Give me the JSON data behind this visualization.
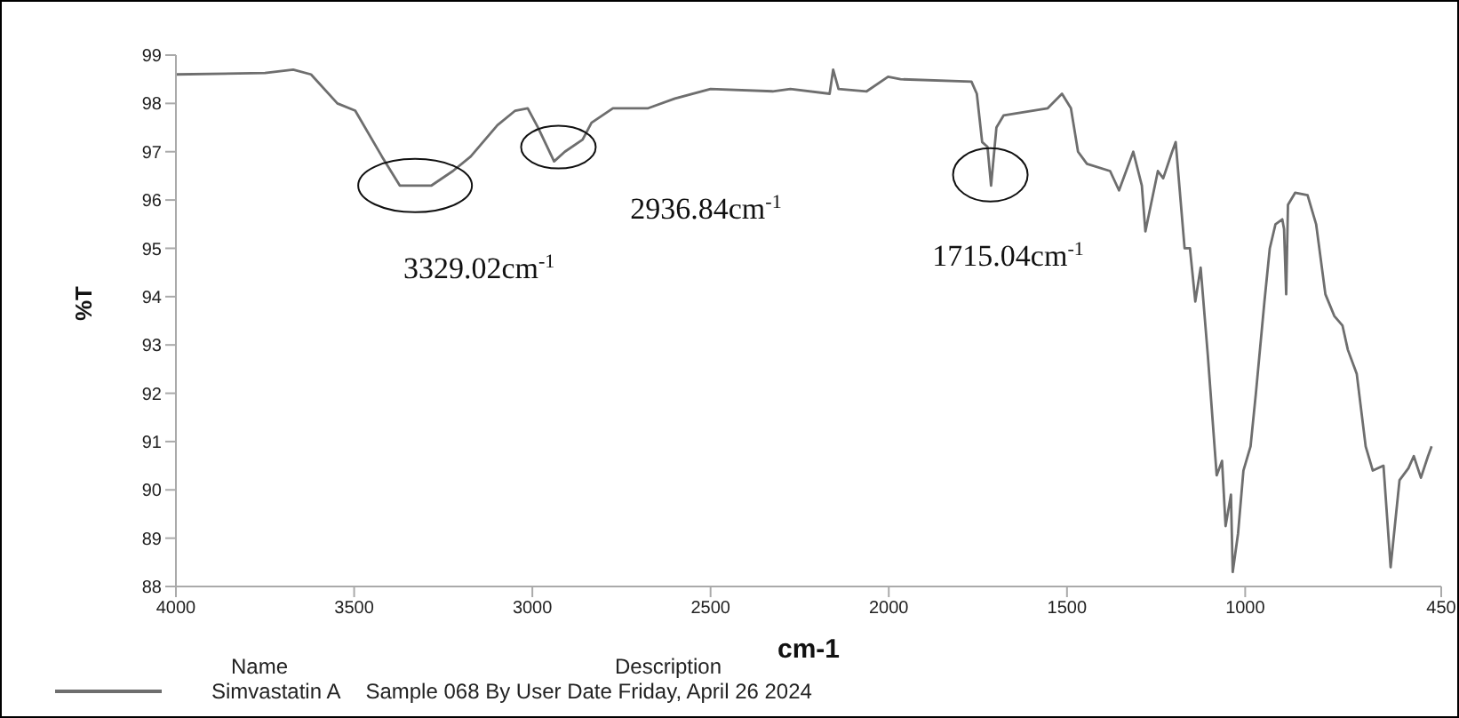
{
  "chart_data": {
    "type": "line",
    "xlabel": "cm-1",
    "ylabel": "%T",
    "xlim": [
      4000,
      450
    ],
    "xticks": [
      4000,
      3500,
      3000,
      2500,
      2000,
      1500,
      1000,
      450
    ],
    "ylim": [
      88,
      99
    ],
    "yticks": [
      88,
      89,
      90,
      91,
      92,
      93,
      94,
      95,
      96,
      97,
      98,
      99
    ],
    "legend": "bottom",
    "legend_title": "Name",
    "marker": "none",
    "line_style": "solid",
    "x": [
      4000,
      3750,
      3671,
      3621,
      3547,
      3497,
      3422,
      3372,
      3332,
      3283,
      3223,
      3173,
      3098,
      3048,
      3013,
      2984,
      2939,
      2909,
      2859,
      2834,
      2774,
      2675,
      2600,
      2500,
      2326,
      2276,
      2166,
      2156,
      2141,
      2062,
      2002,
      1967,
      1768,
      1753,
      1738,
      1723,
      1713,
      1698,
      1678,
      1554,
      1514,
      1489,
      1469,
      1444,
      1379,
      1354,
      1314,
      1290,
      1280,
      1245,
      1230,
      1205,
      1195,
      1170,
      1155,
      1140,
      1125,
      1105,
      1080,
      1065,
      1055,
      1040,
      1035,
      1020,
      1005,
      985,
      970,
      946,
      931,
      915,
      896,
      891,
      885,
      880,
      860,
      825,
      801,
      775,
      750,
      727,
      712,
      687,
      662,
      642,
      612,
      592,
      567,
      542,
      527,
      507,
      487,
      477
    ],
    "series": [
      {
        "name": "Simvastatin A",
        "color": "#6e6e6e",
        "values": [
          98.6,
          98.63,
          98.7,
          98.6,
          98.0,
          97.85,
          96.9,
          96.3,
          96.3,
          96.3,
          96.6,
          96.9,
          97.55,
          97.85,
          97.9,
          97.5,
          96.8,
          97.0,
          97.25,
          97.6,
          97.9,
          97.9,
          98.1,
          98.3,
          98.25,
          98.3,
          98.2,
          98.7,
          98.3,
          98.25,
          98.55,
          98.5,
          98.45,
          98.2,
          97.2,
          97.1,
          96.3,
          97.5,
          97.75,
          97.9,
          98.2,
          97.9,
          97.0,
          96.75,
          96.6,
          96.2,
          97.0,
          96.3,
          95.35,
          96.6,
          96.45,
          97.0,
          97.2,
          95.0,
          95.0,
          93.9,
          94.6,
          92.8,
          90.3,
          90.6,
          89.25,
          89.9,
          88.3,
          89.1,
          90.4,
          90.9,
          92.0,
          93.9,
          95.0,
          95.5,
          95.6,
          95.4,
          94.05,
          95.9,
          96.15,
          96.1,
          95.5,
          94.05,
          93.6,
          93.4,
          92.9,
          92.4,
          90.9,
          90.4,
          90.5,
          88.4,
          90.2,
          90.45,
          90.7,
          90.25,
          90.7,
          90.9
        ]
      }
    ],
    "annotations": [
      {
        "text": "3329.02cm$^{-1}$",
        "x": 3329.02,
        "y": 96.3
      },
      {
        "text": "2936.84cm$^{-1}$",
        "x": 2936.84,
        "y": 96.8
      },
      {
        "text": "1715.04cm$^{-1}$",
        "x": 1715.04,
        "y": 96.3
      },
      "Description",
      "Sample 068 By User Date Friday, April 26 2024"
    ]
  }
}
